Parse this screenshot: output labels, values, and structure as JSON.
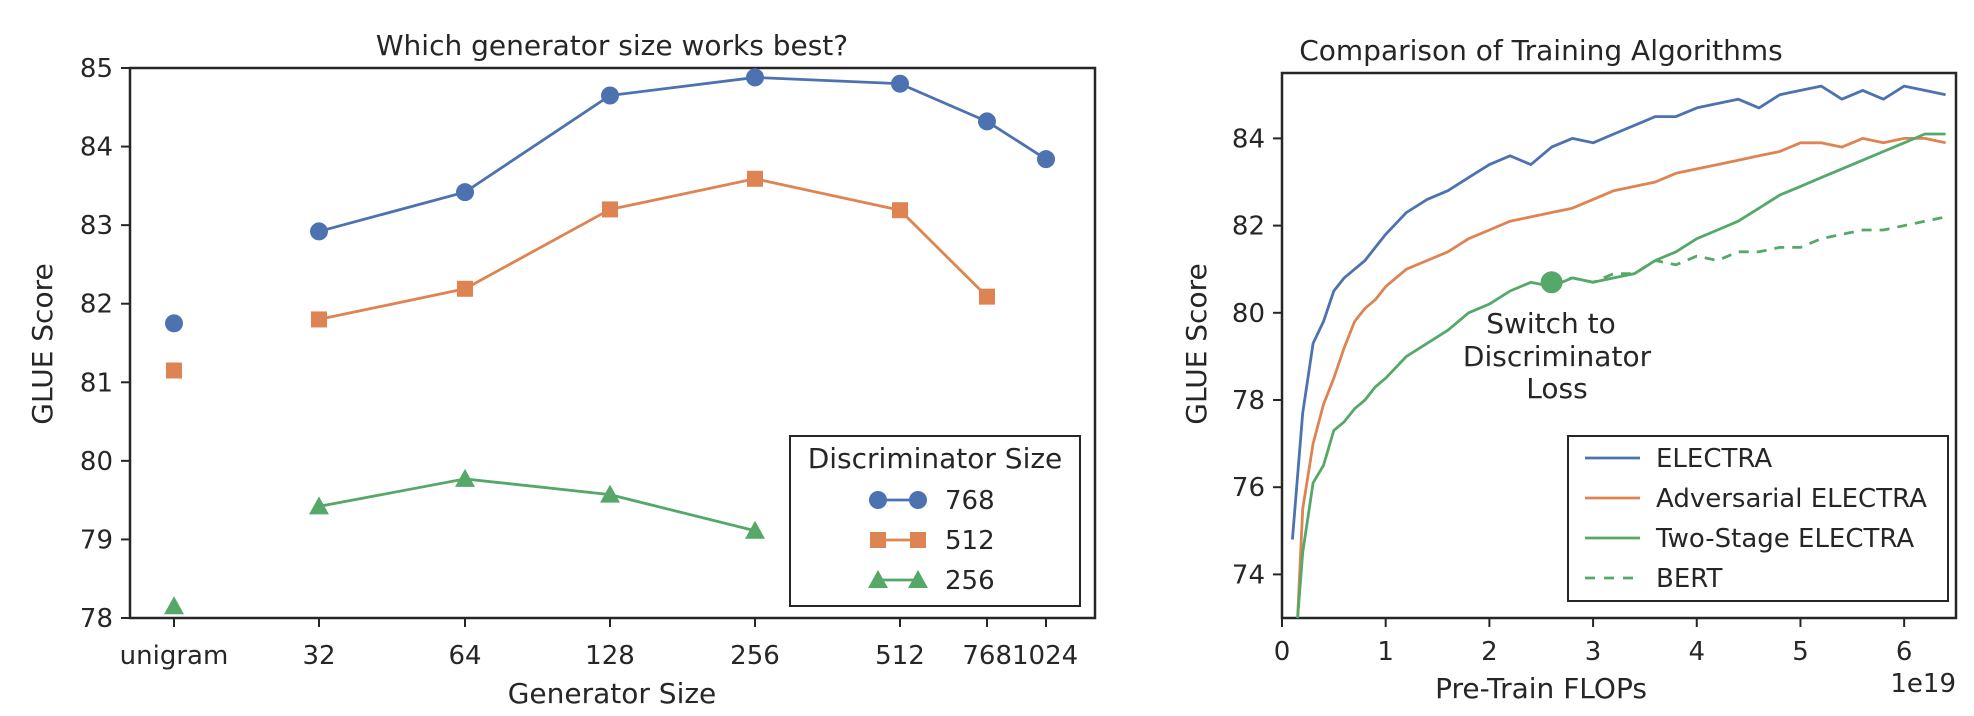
{
  "chart_data": [
    {
      "type": "line",
      "title": "Which generator size works best?",
      "xlabel": "Generator Size",
      "ylabel": "GLUE Score",
      "categories": [
        "unigram",
        "32",
        "64",
        "128",
        "256",
        "512",
        "768",
        "1024"
      ],
      "ylim": [
        78,
        85
      ],
      "yticks": [
        "78",
        "79",
        "80",
        "81",
        "82",
        "83",
        "84",
        "85"
      ],
      "grid": false,
      "legend": {
        "title": "Discriminator Size",
        "position": "bottom-right"
      },
      "series": [
        {
          "name": "768",
          "color": "#4c72b0",
          "marker": "circle",
          "values": [
            81.75,
            82.92,
            83.42,
            84.65,
            84.88,
            84.8,
            84.32,
            83.84
          ]
        },
        {
          "name": "512",
          "color": "#dd8452",
          "marker": "square",
          "values": [
            81.15,
            81.8,
            82.19,
            83.2,
            83.59,
            83.19,
            82.09,
            null
          ]
        },
        {
          "name": "256",
          "color": "#55a868",
          "marker": "triangle",
          "values": [
            78.15,
            79.42,
            79.77,
            79.57,
            79.11,
            null,
            null,
            null
          ]
        }
      ]
    },
    {
      "type": "line",
      "title": "Comparison of Training Algorithms",
      "xlabel": "Pre-Train FLOPs",
      "ylabel": "GLUE Score",
      "x_multiplier": "1e19",
      "xlim": [
        0,
        6.5
      ],
      "ylim": [
        73,
        85.5
      ],
      "xticks": [
        "0",
        "1",
        "2",
        "3",
        "4",
        "5",
        "6"
      ],
      "yticks": [
        "74",
        "76",
        "78",
        "80",
        "82",
        "84"
      ],
      "grid": false,
      "legend": {
        "position": "bottom-right"
      },
      "annotation": {
        "text": [
          "Switch to",
          "Discriminator",
          "Loss"
        ],
        "x": 2.6,
        "y": 80.7
      },
      "series": [
        {
          "name": "ELECTRA",
          "color": "#4c72b0",
          "style": "solid",
          "x": [
            0.1,
            0.2,
            0.3,
            0.4,
            0.5,
            0.6,
            0.7,
            0.8,
            0.9,
            1.0,
            1.2,
            1.4,
            1.6,
            1.8,
            2.0,
            2.2,
            2.4,
            2.6,
            2.8,
            3.0,
            3.2,
            3.4,
            3.6,
            3.8,
            4.0,
            4.2,
            4.4,
            4.6,
            4.8,
            5.0,
            5.2,
            5.4,
            5.6,
            5.8,
            6.0,
            6.2,
            6.4
          ],
          "y": [
            74.8,
            77.7,
            79.3,
            79.8,
            80.5,
            80.8,
            81.0,
            81.2,
            81.5,
            81.8,
            82.3,
            82.6,
            82.8,
            83.1,
            83.4,
            83.6,
            83.4,
            83.8,
            84.0,
            83.9,
            84.1,
            84.3,
            84.5,
            84.5,
            84.7,
            84.8,
            84.9,
            84.7,
            85.0,
            85.1,
            85.2,
            84.9,
            85.1,
            84.9,
            85.2,
            85.1,
            85.0
          ]
        },
        {
          "name": "Adversarial ELECTRA",
          "color": "#dd8452",
          "style": "solid",
          "x": [
            0.15,
            0.2,
            0.3,
            0.4,
            0.5,
            0.6,
            0.7,
            0.8,
            0.9,
            1.0,
            1.2,
            1.4,
            1.6,
            1.8,
            2.0,
            2.2,
            2.4,
            2.6,
            2.8,
            3.0,
            3.2,
            3.4,
            3.6,
            3.8,
            4.0,
            4.2,
            4.4,
            4.6,
            4.8,
            5.0,
            5.2,
            5.4,
            5.6,
            5.8,
            6.0,
            6.2,
            6.4
          ],
          "y": [
            73.0,
            75.5,
            77.0,
            77.9,
            78.5,
            79.2,
            79.8,
            80.1,
            80.3,
            80.6,
            81.0,
            81.2,
            81.4,
            81.7,
            81.9,
            82.1,
            82.2,
            82.3,
            82.4,
            82.6,
            82.8,
            82.9,
            83.0,
            83.2,
            83.3,
            83.4,
            83.5,
            83.6,
            83.7,
            83.9,
            83.9,
            83.8,
            84.0,
            83.9,
            84.0,
            84.0,
            83.9
          ]
        },
        {
          "name": "Two-Stage ELECTRA",
          "color": "#55a868",
          "style": "solid",
          "x": [
            0.15,
            0.2,
            0.3,
            0.4,
            0.5,
            0.6,
            0.7,
            0.8,
            0.9,
            1.0,
            1.2,
            1.4,
            1.6,
            1.8,
            2.0,
            2.2,
            2.4,
            2.6,
            2.8,
            3.0,
            3.2,
            3.4,
            3.6,
            3.8,
            4.0,
            4.2,
            4.4,
            4.6,
            4.8,
            5.0,
            5.2,
            5.4,
            5.6,
            5.8,
            6.0,
            6.2,
            6.4
          ],
          "y": [
            73.0,
            74.5,
            76.1,
            76.5,
            77.3,
            77.5,
            77.8,
            78.0,
            78.3,
            78.5,
            79.0,
            79.3,
            79.6,
            80.0,
            80.2,
            80.5,
            80.7,
            80.6,
            80.8,
            80.7,
            80.8,
            80.9,
            81.2,
            81.4,
            81.7,
            81.9,
            82.1,
            82.4,
            82.7,
            82.9,
            83.1,
            83.3,
            83.5,
            83.7,
            83.9,
            84.1,
            84.1
          ]
        },
        {
          "name": "BERT",
          "color": "#55a868",
          "style": "dashed",
          "x": [
            2.6,
            2.8,
            3.0,
            3.2,
            3.4,
            3.6,
            3.8,
            4.0,
            4.2,
            4.4,
            4.6,
            4.8,
            5.0,
            5.2,
            5.4,
            5.6,
            5.8,
            6.0,
            6.2,
            6.4
          ],
          "y": [
            80.7,
            80.8,
            80.7,
            80.9,
            80.9,
            81.2,
            81.1,
            81.3,
            81.2,
            81.4,
            81.4,
            81.5,
            81.5,
            81.7,
            81.8,
            81.9,
            81.9,
            82.0,
            82.1,
            82.2
          ]
        }
      ]
    }
  ]
}
